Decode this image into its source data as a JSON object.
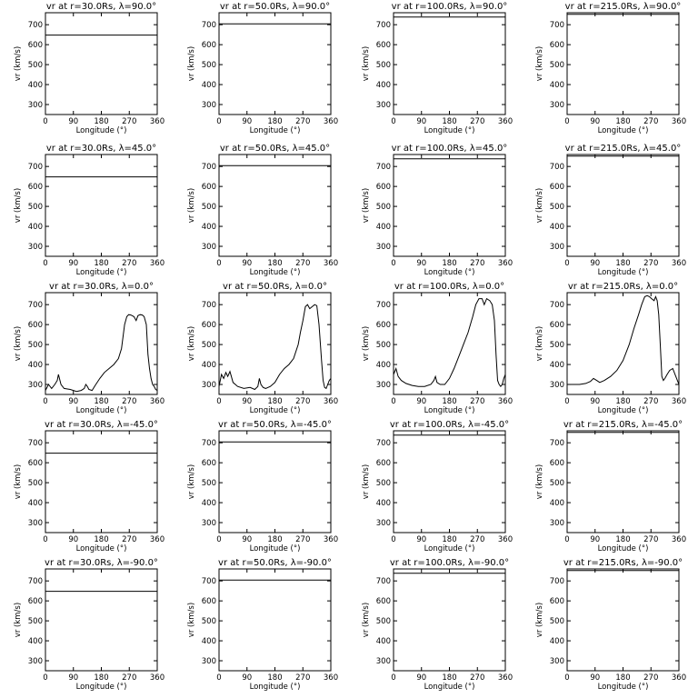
{
  "chart_data": {
    "type": "line",
    "panel_grid": {
      "rows": 5,
      "cols": 4
    },
    "xlim": [
      0,
      360
    ],
    "ylim": [
      250,
      760
    ],
    "xticks": [
      "0",
      "90",
      "180",
      "270",
      "360"
    ],
    "yticks": [
      "300",
      "400",
      "500",
      "600",
      "700"
    ],
    "xlabel": "Longitude (°)",
    "ylabel": "vr (km/s)",
    "panels": [
      {
        "title": "vr at r=30.0Rs, λ=90.0°",
        "y_const": 648
      },
      {
        "title": "vr at r=50.0Rs, λ=90.0°",
        "y_const": 704
      },
      {
        "title": "vr at r=100.0Rs, λ=90.0°",
        "y_const": 738
      },
      {
        "title": "vr at r=215.0Rs, λ=90.0°",
        "y_const": 752
      },
      {
        "title": "vr at r=30.0Rs, λ=45.0°",
        "y_const": 648
      },
      {
        "title": "vr at r=50.0Rs, λ=45.0°",
        "y_const": 704
      },
      {
        "title": "vr at r=100.0Rs, λ=45.0°",
        "y_const": 738
      },
      {
        "title": "vr at r=215.0Rs, λ=45.0°",
        "y_const": 752
      },
      {
        "title": "vr at r=30.0Rs, λ=0.0°",
        "x": [
          0,
          10,
          20,
          30,
          38,
          42,
          50,
          60,
          80,
          100,
          115,
          125,
          130,
          135,
          140,
          150,
          160,
          175,
          190,
          205,
          220,
          235,
          245,
          250,
          255,
          262,
          268,
          275,
          285,
          292,
          298,
          305,
          312,
          318,
          325,
          330,
          335,
          340,
          345,
          350,
          355,
          360
        ],
        "y": [
          270,
          300,
          280,
          300,
          320,
          350,
          300,
          280,
          275,
          265,
          270,
          280,
          300,
          290,
          275,
          270,
          295,
          330,
          360,
          380,
          400,
          430,
          480,
          540,
          600,
          640,
          650,
          648,
          640,
          620,
          645,
          650,
          648,
          640,
          600,
          450,
          380,
          330,
          300,
          290,
          275,
          270
        ]
      },
      {
        "title": "vr at r=50.0Rs, λ=0.0°",
        "x": [
          0,
          8,
          15,
          22,
          28,
          35,
          45,
          60,
          80,
          100,
          115,
          125,
          130,
          135,
          142,
          150,
          165,
          180,
          195,
          210,
          225,
          240,
          255,
          262,
          270,
          278,
          285,
          292,
          300,
          308,
          315,
          322,
          330,
          335,
          340,
          345,
          350,
          355,
          360
        ],
        "y": [
          290,
          350,
          330,
          360,
          340,
          365,
          310,
          290,
          280,
          285,
          275,
          290,
          330,
          300,
          285,
          280,
          290,
          310,
          350,
          380,
          400,
          430,
          500,
          560,
          620,
          690,
          700,
          680,
          690,
          700,
          695,
          600,
          420,
          320,
          285,
          280,
          300,
          320,
          330
        ]
      },
      {
        "title": "vr at r=100.0Rs, λ=0.0°",
        "x": [
          0,
          8,
          15,
          25,
          40,
          60,
          80,
          100,
          120,
          130,
          135,
          140,
          150,
          165,
          180,
          195,
          210,
          225,
          240,
          255,
          265,
          275,
          285,
          292,
          300,
          310,
          318,
          325,
          330,
          335,
          340,
          345,
          350,
          355,
          360
        ],
        "y": [
          350,
          380,
          340,
          320,
          305,
          295,
          290,
          290,
          300,
          320,
          340,
          310,
          300,
          300,
          330,
          380,
          440,
          500,
          560,
          640,
          700,
          730,
          730,
          700,
          730,
          720,
          700,
          620,
          450,
          320,
          300,
          290,
          300,
          330,
          350
        ]
      },
      {
        "title": "vr at r=215.0Rs, λ=0.0°",
        "x": [
          0,
          10,
          20,
          40,
          60,
          75,
          85,
          95,
          105,
          120,
          140,
          160,
          180,
          200,
          215,
          230,
          240,
          250,
          258,
          265,
          272,
          280,
          285,
          290,
          295,
          300,
          305,
          310,
          315,
          322,
          330,
          340,
          350,
          360
        ],
        "y": [
          300,
          300,
          300,
          300,
          305,
          315,
          330,
          320,
          310,
          320,
          340,
          370,
          420,
          500,
          580,
          650,
          700,
          740,
          745,
          740,
          730,
          720,
          740,
          720,
          650,
          500,
          340,
          320,
          330,
          350,
          370,
          380,
          340,
          300
        ]
      },
      {
        "title": "vr at r=30.0Rs, λ=-45.0°",
        "y_const": 648
      },
      {
        "title": "vr at r=50.0Rs, λ=-45.0°",
        "y_const": 704
      },
      {
        "title": "vr at r=100.0Rs, λ=-45.0°",
        "y_const": 738
      },
      {
        "title": "vr at r=215.0Rs, λ=-45.0°",
        "y_const": 752
      },
      {
        "title": "vr at r=30.0Rs, λ=-90.0°",
        "y_const": 648
      },
      {
        "title": "vr at r=50.0Rs, λ=-90.0°",
        "y_const": 704
      },
      {
        "title": "vr at r=100.0Rs, λ=-90.0°",
        "y_const": 738
      },
      {
        "title": "vr at r=215.0Rs, λ=-90.0°",
        "y_const": 752
      }
    ]
  }
}
